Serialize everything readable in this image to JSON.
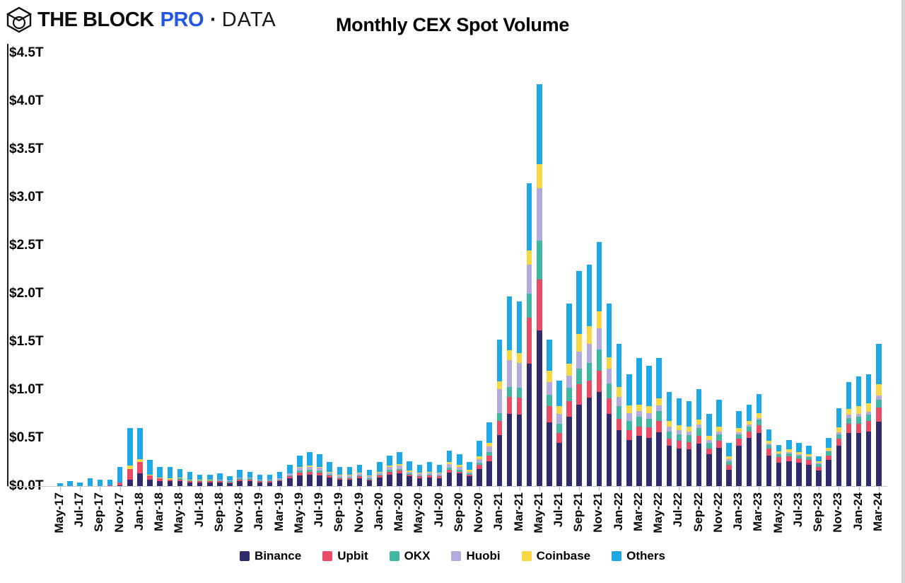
{
  "brand": {
    "icon": "block-cube-logo",
    "name": "THE BLOCK",
    "pro": "PRO",
    "separator": "·",
    "suffix": "DATA"
  },
  "chart_data": {
    "type": "bar",
    "stacked": true,
    "title": "Monthly CEX Spot Volume",
    "unit": "USD trillions",
    "ylim": [
      0,
      4.5
    ],
    "y_tick_step": 0.5,
    "y_tick_labels": [
      "$0.0T",
      "$0.5T",
      "$1.0T",
      "$1.5T",
      "$2.0T",
      "$2.5T",
      "$3.0T",
      "$3.5T",
      "$4.0T",
      "$4.5T"
    ],
    "x_label_every": 2,
    "grid": false,
    "legend_position": "bottom",
    "categories": [
      "May-17",
      "Jun-17",
      "Jul-17",
      "Aug-17",
      "Sep-17",
      "Oct-17",
      "Nov-17",
      "Dec-17",
      "Jan-18",
      "Feb-18",
      "Mar-18",
      "Apr-18",
      "May-18",
      "Jun-18",
      "Jul-18",
      "Aug-18",
      "Sep-18",
      "Oct-18",
      "Nov-18",
      "Dec-18",
      "Jan-19",
      "Feb-19",
      "Mar-19",
      "Apr-19",
      "May-19",
      "Jun-19",
      "Jul-19",
      "Aug-19",
      "Sep-19",
      "Oct-19",
      "Nov-19",
      "Dec-19",
      "Jan-20",
      "Feb-20",
      "Mar-20",
      "Apr-20",
      "May-20",
      "Jun-20",
      "Jul-20",
      "Aug-20",
      "Sep-20",
      "Oct-20",
      "Nov-20",
      "Dec-20",
      "Jan-21",
      "Feb-21",
      "Mar-21",
      "Apr-21",
      "May-21",
      "Jun-21",
      "Jul-21",
      "Aug-21",
      "Sep-21",
      "Oct-21",
      "Nov-21",
      "Dec-21",
      "Jan-22",
      "Feb-22",
      "Mar-22",
      "Apr-22",
      "May-22",
      "Jun-22",
      "Jul-22",
      "Aug-22",
      "Sep-22",
      "Oct-22",
      "Nov-22",
      "Dec-22",
      "Jan-23",
      "Feb-23",
      "Mar-23",
      "Apr-23",
      "May-23",
      "Jun-23",
      "Jul-23",
      "Aug-23",
      "Sep-23",
      "Oct-23",
      "Nov-23",
      "Dec-23",
      "Jan-24",
      "Feb-24",
      "Mar-24"
    ],
    "series": [
      {
        "name": "Binance",
        "color": "#2f2b6d",
        "values": [
          0,
          0,
          0,
          0,
          0,
          0,
          0.01,
          0.07,
          0.13,
          0.07,
          0.05,
          0.05,
          0.05,
          0.04,
          0.04,
          0.04,
          0.04,
          0.03,
          0.05,
          0.05,
          0.04,
          0.04,
          0.05,
          0.08,
          0.11,
          0.12,
          0.11,
          0.09,
          0.07,
          0.07,
          0.08,
          0.06,
          0.09,
          0.12,
          0.13,
          0.1,
          0.08,
          0.09,
          0.08,
          0.14,
          0.13,
          0.1,
          0.18,
          0.26,
          0.53,
          0.75,
          0.74,
          1.27,
          1.62,
          0.66,
          0.45,
          0.72,
          0.85,
          0.92,
          0.98,
          0.75,
          0.58,
          0.48,
          0.52,
          0.5,
          0.56,
          0.42,
          0.39,
          0.38,
          0.44,
          0.33,
          0.4,
          0.17,
          0.42,
          0.5,
          0.55,
          0.32,
          0.24,
          0.26,
          0.24,
          0.22,
          0.16,
          0.27,
          0.42,
          0.55,
          0.55,
          0.57,
          0.67
        ]
      },
      {
        "name": "Upbit",
        "color": "#ea4b64",
        "values": [
          0,
          0,
          0,
          0,
          0,
          0.01,
          0.03,
          0.11,
          0.12,
          0.04,
          0.03,
          0.02,
          0.02,
          0.01,
          0.01,
          0.01,
          0.01,
          0.01,
          0.02,
          0.02,
          0.01,
          0.01,
          0.01,
          0.02,
          0.03,
          0.03,
          0.03,
          0.02,
          0.01,
          0.01,
          0.02,
          0.01,
          0.02,
          0.03,
          0.03,
          0.02,
          0.02,
          0.02,
          0.02,
          0.03,
          0.02,
          0.02,
          0.04,
          0.06,
          0.15,
          0.18,
          0.18,
          0.48,
          0.53,
          0.17,
          0.1,
          0.16,
          0.21,
          0.18,
          0.22,
          0.16,
          0.12,
          0.1,
          0.1,
          0.11,
          0.12,
          0.07,
          0.08,
          0.08,
          0.08,
          0.06,
          0.07,
          0.05,
          0.07,
          0.07,
          0.08,
          0.07,
          0.06,
          0.05,
          0.05,
          0.05,
          0.04,
          0.05,
          0.07,
          0.1,
          0.1,
          0.11,
          0.15
        ]
      },
      {
        "name": "OKX",
        "color": "#3fb7a3",
        "values": [
          0,
          0,
          0,
          0,
          0,
          0,
          0,
          0,
          0,
          0,
          0,
          0,
          0.01,
          0.01,
          0.01,
          0.01,
          0.01,
          0.01,
          0.01,
          0.01,
          0.01,
          0.01,
          0.01,
          0.01,
          0.02,
          0.02,
          0.02,
          0.01,
          0.01,
          0.01,
          0.01,
          0.01,
          0.01,
          0.02,
          0.02,
          0.01,
          0.01,
          0.01,
          0.01,
          0.02,
          0.02,
          0.01,
          0.02,
          0.03,
          0.08,
          0.1,
          0.1,
          0.25,
          0.4,
          0.12,
          0.1,
          0.14,
          0.16,
          0.18,
          0.22,
          0.16,
          0.13,
          0.1,
          0.1,
          0.09,
          0.1,
          0.08,
          0.07,
          0.07,
          0.08,
          0.06,
          0.07,
          0.04,
          0.05,
          0.05,
          0.06,
          0.04,
          0.03,
          0.03,
          0.03,
          0.03,
          0.03,
          0.04,
          0.05,
          0.06,
          0.07,
          0.06,
          0.08
        ]
      },
      {
        "name": "Huobi",
        "color": "#b3abdd",
        "values": [
          0,
          0,
          0,
          0,
          0,
          0,
          0,
          0,
          0,
          0,
          0,
          0,
          0,
          0,
          0,
          0,
          0.01,
          0.01,
          0.01,
          0.01,
          0.01,
          0.01,
          0.01,
          0.02,
          0.03,
          0.03,
          0.03,
          0.02,
          0.02,
          0.02,
          0.02,
          0.02,
          0.02,
          0.03,
          0.03,
          0.02,
          0.02,
          0.02,
          0.02,
          0.04,
          0.03,
          0.02,
          0.04,
          0.06,
          0.25,
          0.28,
          0.26,
          0.3,
          0.55,
          0.13,
          0.1,
          0.13,
          0.18,
          0.2,
          0.22,
          0.15,
          0.1,
          0.08,
          0.06,
          0.06,
          0.06,
          0.05,
          0.04,
          0.04,
          0.04,
          0.03,
          0.03,
          0.02,
          0.02,
          0.02,
          0.02,
          0.01,
          0.01,
          0.01,
          0.01,
          0.01,
          0.01,
          0.01,
          0.02,
          0.03,
          0.03,
          0.03,
          0.04
        ]
      },
      {
        "name": "Coinbase",
        "color": "#f6d844",
        "values": [
          0,
          0,
          0,
          0,
          0,
          0,
          0,
          0.03,
          0.03,
          0.01,
          0.01,
          0.01,
          0.01,
          0.01,
          0.01,
          0.01,
          0,
          0,
          0,
          0,
          0,
          0,
          0,
          0,
          0.01,
          0.01,
          0.01,
          0.01,
          0.01,
          0.01,
          0.01,
          0.01,
          0.01,
          0.01,
          0.02,
          0.01,
          0.01,
          0.01,
          0.01,
          0.02,
          0.02,
          0.02,
          0.03,
          0.04,
          0.08,
          0.1,
          0.1,
          0.15,
          0.25,
          0.12,
          0.08,
          0.12,
          0.18,
          0.18,
          0.18,
          0.12,
          0.1,
          0.08,
          0.07,
          0.07,
          0.07,
          0.06,
          0.05,
          0.05,
          0.05,
          0.04,
          0.05,
          0.03,
          0.04,
          0.04,
          0.05,
          0.03,
          0.02,
          0.03,
          0.02,
          0.02,
          0.02,
          0.03,
          0.05,
          0.06,
          0.08,
          0.09,
          0.12
        ]
      },
      {
        "name": "Others",
        "color": "#1ea9e6",
        "values": [
          0.03,
          0.05,
          0.04,
          0.08,
          0.07,
          0.06,
          0.16,
          0.39,
          0.32,
          0.15,
          0.11,
          0.12,
          0.09,
          0.08,
          0.05,
          0.05,
          0.06,
          0.04,
          0.08,
          0.06,
          0.05,
          0.05,
          0.07,
          0.09,
          0.12,
          0.14,
          0.13,
          0.1,
          0.08,
          0.08,
          0.08,
          0.06,
          0.1,
          0.11,
          0.12,
          0.1,
          0.08,
          0.1,
          0.08,
          0.12,
          0.11,
          0.08,
          0.16,
          0.21,
          0.43,
          0.56,
          0.54,
          0.7,
          0.83,
          0.32,
          0.27,
          0.63,
          0.66,
          0.64,
          0.72,
          0.56,
          0.45,
          0.32,
          0.48,
          0.42,
          0.42,
          0.3,
          0.28,
          0.26,
          0.32,
          0.23,
          0.28,
          0.14,
          0.18,
          0.17,
          0.2,
          0.12,
          0.07,
          0.1,
          0.1,
          0.09,
          0.05,
          0.1,
          0.2,
          0.28,
          0.31,
          0.3,
          0.42
        ]
      }
    ]
  }
}
